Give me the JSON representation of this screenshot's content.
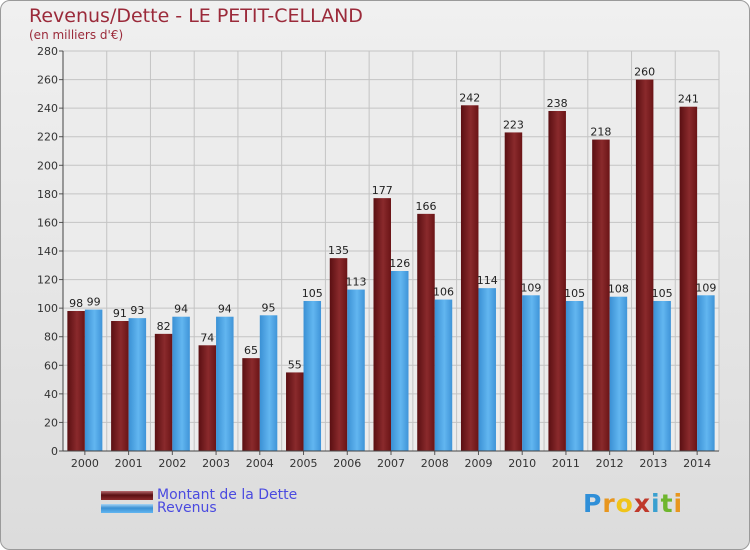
{
  "chart_data": {
    "type": "bar",
    "title": "Revenus/Dette - LE PETIT-CELLAND",
    "subtitle": "(en milliers d'€)",
    "categories": [
      "2000",
      "2001",
      "2002",
      "2003",
      "2004",
      "2005",
      "2006",
      "2007",
      "2008",
      "2009",
      "2010",
      "2011",
      "2012",
      "2013",
      "2014"
    ],
    "series": [
      {
        "name": "Montant de la Dette",
        "color": "#7a1a1c",
        "values": [
          98,
          91,
          82,
          74,
          65,
          55,
          135,
          177,
          166,
          242,
          223,
          238,
          218,
          260,
          241
        ]
      },
      {
        "name": "Revenus",
        "color": "#4aa3e4",
        "values": [
          99,
          93,
          94,
          94,
          95,
          105,
          113,
          126,
          106,
          114,
          109,
          105,
          108,
          105,
          109
        ]
      }
    ],
    "ylim": [
      0,
      280
    ],
    "yticks": [
      0,
      20,
      40,
      60,
      80,
      100,
      120,
      140,
      160,
      180,
      200,
      220,
      240,
      260,
      280
    ],
    "grid": true,
    "legend": "bottom-left",
    "logo": {
      "letters": [
        "P",
        "r",
        "o",
        "x",
        "i",
        "t",
        "i"
      ],
      "colors": [
        "#2f8fd8",
        "#e8961e",
        "#f0c419",
        "#c0392b",
        "#3aa0d0",
        "#6fb62e",
        "#e8961e"
      ]
    }
  }
}
